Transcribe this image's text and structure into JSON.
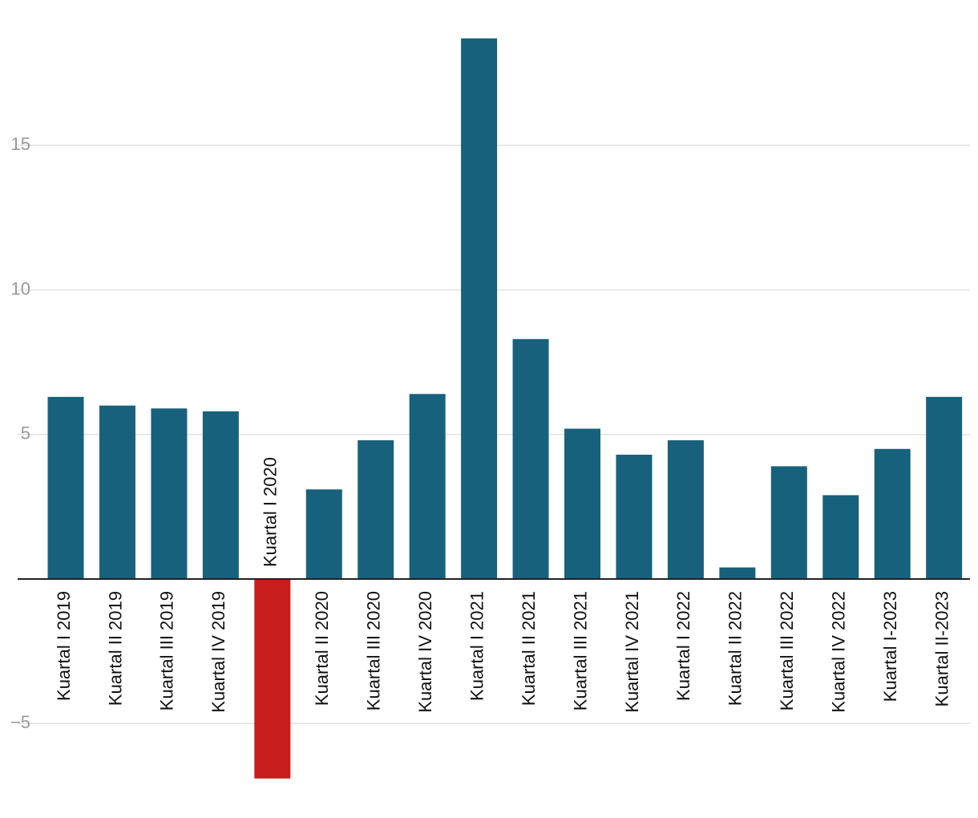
{
  "chart_data": {
    "type": "bar",
    "categories": [
      "Kuartal I 2019",
      "Kuartal II 2019",
      "Kuartal III 2019",
      "Kuartal IV 2019",
      "Kuartal I 2020",
      "Kuartal II 2020",
      "Kuartal III 2020",
      "Kuartal IV 2020",
      "Kuartal I 2021",
      "Kuartal II 2021",
      "Kuartal III 2021",
      "Kuartal IV 2021",
      "Kuartal I 2022",
      "Kuartal II 2022",
      "Kuartal III 2022",
      "Kuartal IV 2022",
      "Kuartal I-2023",
      "Kuartal II-2023"
    ],
    "values": [
      6.3,
      6.0,
      5.9,
      5.8,
      -6.9,
      3.1,
      4.8,
      6.4,
      18.7,
      8.3,
      5.2,
      4.3,
      4.8,
      0.4,
      3.9,
      2.9,
      4.5,
      6.3
    ],
    "ylim": [
      -6.9,
      18.7
    ],
    "yticks": [
      -5,
      5,
      10,
      15
    ],
    "ytick_labels": [
      "−5",
      "5",
      "10",
      "15"
    ],
    "grid": true,
    "colors": {
      "positive": "#18617c",
      "negative": "#c71d1d"
    },
    "title": "",
    "xlabel": "",
    "ylabel": ""
  }
}
